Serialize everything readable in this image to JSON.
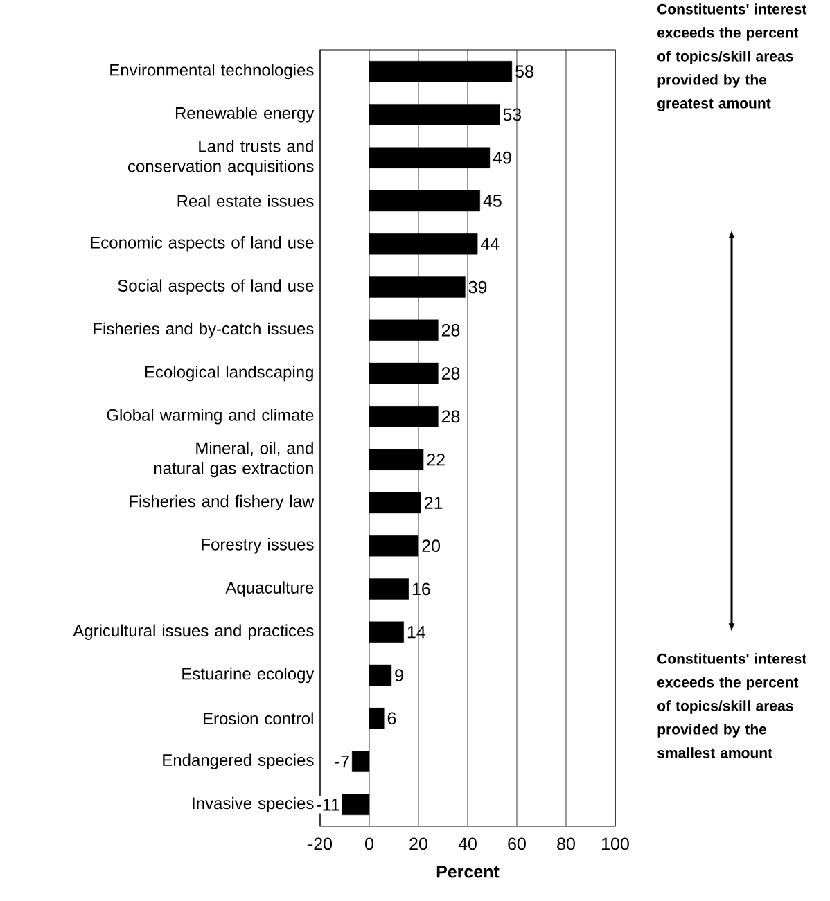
{
  "chart_data": {
    "type": "bar",
    "orientation": "horizontal",
    "categories": [
      "Environmental technologies",
      "Renewable energy",
      "Land trusts and conservation acquisitions",
      "Real estate issues",
      "Economic aspects of land use",
      "Social aspects of land use",
      "Fisheries and by-catch issues",
      "Ecological landscaping",
      "Global warming and climate",
      "Mineral, oil, and natural gas extraction",
      "Fisheries and fishery law",
      "Forestry issues",
      "Aquaculture",
      "Agricultural issues and practices",
      "Estuarine ecology",
      "Erosion control",
      "Endangered species",
      "Invasive species"
    ],
    "values": [
      58,
      53,
      49,
      45,
      44,
      39,
      28,
      28,
      28,
      22,
      21,
      20,
      16,
      14,
      9,
      6,
      -7,
      -11
    ],
    "color": "#000000",
    "data_labels": true,
    "xlim": [
      -20,
      100
    ],
    "xticks": [
      -20,
      0,
      20,
      40,
      60,
      80,
      100
    ],
    "grid": "x",
    "xlabel": "Percent",
    "annotations": [
      "Constituents' interest exceeds the percent of topics/skill areas provided by the greatest amount",
      "Constituents' interest exceeds the percent of topics/skill areas provided by the smallest amount"
    ]
  }
}
